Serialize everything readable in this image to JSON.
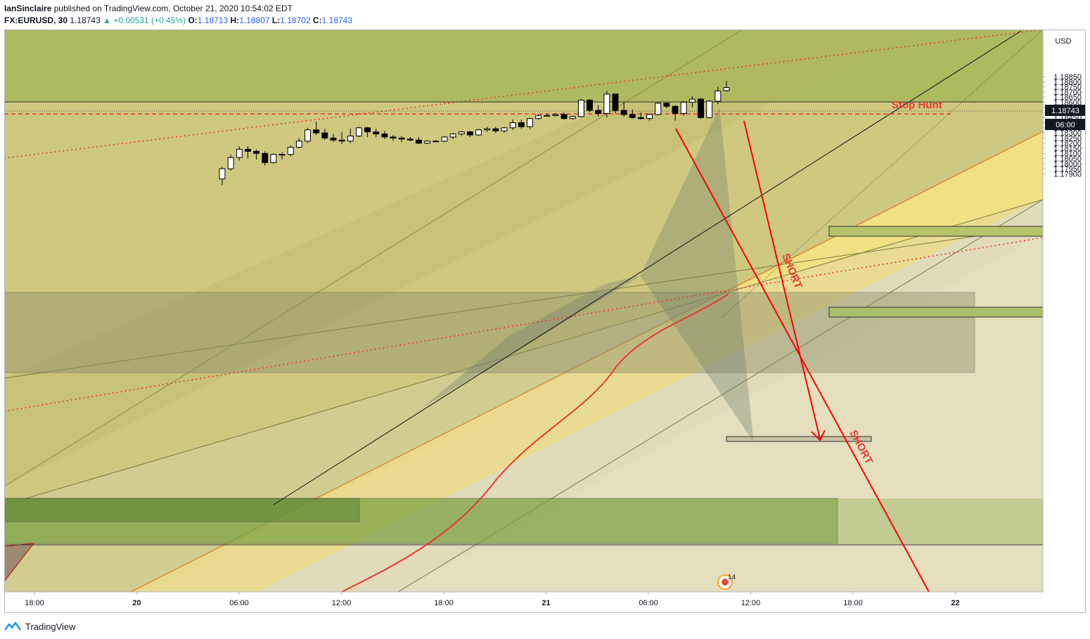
{
  "header": {
    "author": "IanSinclaire",
    "published_text": "published on TradingView.com, October 21, 2020 10:54:02 EDT",
    "symbol": "FX:EURUSD, 30",
    "last": "1.18743",
    "change": "+0.00531 (+0.45%)",
    "o_label": "O:",
    "o_value": "1.18713",
    "h_label": "H:",
    "h_value": "1.18807",
    "l_label": "L:",
    "l_value": "1.18702",
    "c_label": "C:",
    "c_value": "1.18743"
  },
  "footer": {
    "brand": "TradingView"
  },
  "colors": {
    "up_body": "#ffffff",
    "down_body": "#000000",
    "wick": "#000000",
    "annotation_red": "#ff0000",
    "stop_hunt": "#e53935",
    "zone_green": "#6b9a3a",
    "fan_yellow": "#f5e07a",
    "olive": "#a7b85a"
  },
  "chart_data": {
    "type": "candlestick",
    "symbol": "FX:EURUSD",
    "interval": "30",
    "currency": "USD",
    "price_axis_ticks": [
      "1.18850",
      "1.18800",
      "1.18750",
      "1.18700",
      "1.18650",
      "1.18600",
      "1.18550",
      "1.18500",
      "1.18450",
      "1.18400",
      "1.18350",
      "1.18300",
      "1.18250",
      "1.18200",
      "1.18150",
      "1.18100",
      "1.18050",
      "1.18000",
      "1.17950",
      "1.17900"
    ],
    "time_axis_ticks": [
      "18:00",
      "20",
      "06:00",
      "12:00",
      "18:00",
      "21",
      "06:00",
      "12:00",
      "18:00",
      "22"
    ],
    "last_price_label": "1.18743",
    "countdown_label": "06:00",
    "annotations": {
      "stop_hunt": "Stop Hunt",
      "short1": "SHORT",
      "short2": "SHORT"
    },
    "event_badge": "14",
    "candles": [
      [
        1.1785,
        1.1797,
        1.1779,
        1.1795
      ],
      [
        1.1795,
        1.1809,
        1.1793,
        1.1806
      ],
      [
        1.1806,
        1.1817,
        1.1803,
        1.1814
      ],
      [
        1.1814,
        1.1817,
        1.1805,
        1.1812
      ],
      [
        1.1812,
        1.1814,
        1.1804,
        1.181
      ],
      [
        1.181,
        1.1812,
        1.1798,
        1.1801
      ],
      [
        1.1801,
        1.181,
        1.18,
        1.1809
      ],
      [
        1.1809,
        1.1811,
        1.1804,
        1.1809
      ],
      [
        1.1809,
        1.1818,
        1.1807,
        1.1816
      ],
      [
        1.1816,
        1.1825,
        1.1815,
        1.1822
      ],
      [
        1.1822,
        1.1835,
        1.182,
        1.1833
      ],
      [
        1.1833,
        1.1841,
        1.1828,
        1.183
      ],
      [
        1.183,
        1.1834,
        1.1823,
        1.1825
      ],
      [
        1.1825,
        1.1829,
        1.1821,
        1.1823
      ],
      [
        1.1823,
        1.1831,
        1.1819,
        1.1822
      ],
      [
        1.1822,
        1.1834,
        1.182,
        1.1827
      ],
      [
        1.1827,
        1.1836,
        1.1826,
        1.1835
      ],
      [
        1.1835,
        1.1836,
        1.1826,
        1.1831
      ],
      [
        1.1831,
        1.1834,
        1.1826,
        1.1829
      ],
      [
        1.1829,
        1.1832,
        1.1824,
        1.1826
      ],
      [
        1.1826,
        1.1828,
        1.1822,
        1.1825
      ],
      [
        1.1825,
        1.1827,
        1.1821,
        1.1824
      ],
      [
        1.1824,
        1.1826,
        1.1822,
        1.1823
      ],
      [
        1.1823,
        1.1826,
        1.1819,
        1.182
      ],
      [
        1.182,
        1.1823,
        1.1819,
        1.1822
      ],
      [
        1.1822,
        1.1823,
        1.1821,
        1.1822
      ],
      [
        1.1822,
        1.1827,
        1.1821,
        1.1826
      ],
      [
        1.1826,
        1.183,
        1.1824,
        1.1829
      ],
      [
        1.1829,
        1.1832,
        1.1827,
        1.1831
      ],
      [
        1.1831,
        1.1832,
        1.1826,
        1.1828
      ],
      [
        1.1828,
        1.1834,
        1.1827,
        1.1833
      ],
      [
        1.1833,
        1.1836,
        1.1831,
        1.1834
      ],
      [
        1.1834,
        1.1836,
        1.183,
        1.1832
      ],
      [
        1.1832,
        1.1836,
        1.183,
        1.1835
      ],
      [
        1.1835,
        1.1843,
        1.1833,
        1.184
      ],
      [
        1.184,
        1.1843,
        1.1834,
        1.1836
      ],
      [
        1.1836,
        1.1845,
        1.1834,
        1.1844
      ],
      [
        1.1844,
        1.1848,
        1.1843,
        1.1847
      ],
      [
        1.1847,
        1.1849,
        1.1846,
        1.1847
      ],
      [
        1.1847,
        1.1849,
        1.1846,
        1.1848
      ],
      [
        1.1848,
        1.185,
        1.1843,
        1.1844
      ],
      [
        1.1844,
        1.1847,
        1.1843,
        1.1846
      ],
      [
        1.1846,
        1.1863,
        1.1845,
        1.1862
      ],
      [
        1.1862,
        1.1863,
        1.185,
        1.1852
      ],
      [
        1.1852,
        1.1857,
        1.1846,
        1.1849
      ],
      [
        1.1849,
        1.1871,
        1.1845,
        1.1868
      ],
      [
        1.1868,
        1.1868,
        1.1849,
        1.1852
      ],
      [
        1.1852,
        1.186,
        1.1846,
        1.1848
      ],
      [
        1.1848,
        1.1853,
        1.1844,
        1.1845
      ],
      [
        1.1845,
        1.185,
        1.1843,
        1.1844
      ],
      [
        1.1844,
        1.1849,
        1.1842,
        1.1848
      ],
      [
        1.1848,
        1.186,
        1.1847,
        1.1859
      ],
      [
        1.1859,
        1.186,
        1.1854,
        1.1856
      ],
      [
        1.1856,
        1.1857,
        1.1842,
        1.1849
      ],
      [
        1.1849,
        1.1861,
        1.1847,
        1.186
      ],
      [
        1.186,
        1.1866,
        1.1855,
        1.1863
      ],
      [
        1.1863,
        1.1864,
        1.1844,
        1.1845
      ],
      [
        1.1845,
        1.1862,
        1.1844,
        1.1861
      ],
      [
        1.1861,
        1.1875,
        1.1858,
        1.1871
      ],
      [
        1.18713,
        1.18807,
        1.18702,
        1.18743
      ]
    ]
  }
}
